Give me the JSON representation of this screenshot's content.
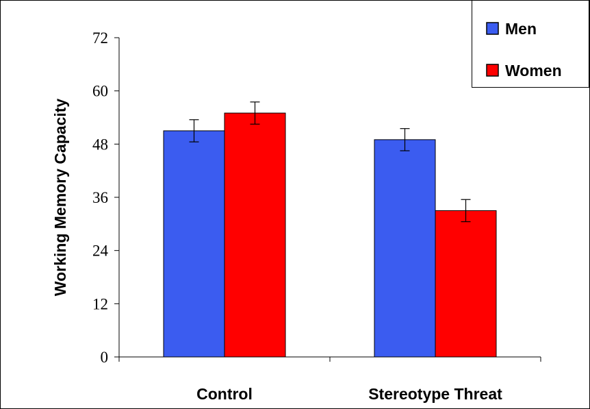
{
  "chart_data": {
    "type": "bar",
    "title": "",
    "xlabel": "",
    "ylabel": "Working Memory Capacity",
    "categories": [
      "Control",
      "Stereotype Threat"
    ],
    "series": [
      {
        "name": "Men",
        "color": "#3b5cf0",
        "values": [
          51,
          49
        ],
        "error": [
          2.5,
          2.5
        ]
      },
      {
        "name": "Women",
        "color": "#ff0000",
        "values": [
          55,
          33
        ],
        "error": [
          2.5,
          2.5
        ]
      }
    ],
    "ylim": [
      0,
      72
    ],
    "yticks": [
      "0",
      "12",
      "24",
      "36",
      "48",
      "60",
      "72"
    ],
    "grid": false,
    "legend_position": "top-right"
  }
}
